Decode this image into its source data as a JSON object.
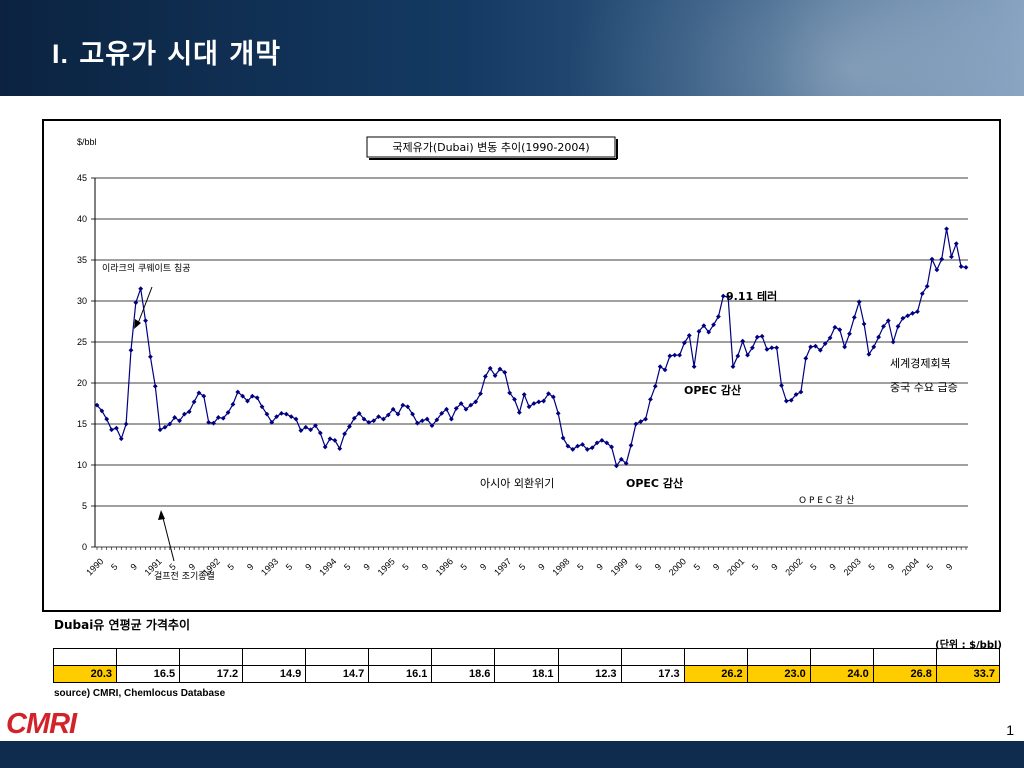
{
  "slide": {
    "title_num": "I.",
    "title_text": "고유가 시대 개막",
    "page_number": "1"
  },
  "chart_data": {
    "type": "line",
    "title": "국제유가(Dubai) 변동 추이(1990-2004)",
    "ylabel": "$/bbl",
    "ylim": [
      0,
      45
    ],
    "yticks": [
      0,
      5,
      10,
      15,
      20,
      25,
      30,
      35,
      40,
      45
    ],
    "grid": true,
    "line_color": "#000080",
    "x_tick_labels": [
      "1990",
      "5",
      "9",
      "1991",
      "5",
      "9",
      "1992",
      "5",
      "9",
      "1993",
      "5",
      "9",
      "1994",
      "5",
      "9",
      "1995",
      "5",
      "9",
      "1996",
      "5",
      "9",
      "1997",
      "5",
      "9",
      "1998",
      "5",
      "9",
      "1999",
      "5",
      "9",
      "2000",
      "5",
      "9",
      "2001",
      "5",
      "9",
      "2002",
      "5",
      "9",
      "2003",
      "5",
      "9",
      "2004",
      "5",
      "9"
    ],
    "series": [
      {
        "values": [
          17.3,
          16.6,
          15.6,
          14.3,
          14.5,
          13.2,
          15.0,
          24.0,
          29.8,
          31.5,
          27.6,
          23.2,
          19.6,
          14.3,
          14.6,
          15.0,
          15.8,
          15.4,
          16.2,
          16.5,
          17.7,
          18.8,
          18.4,
          15.2,
          15.1,
          15.8,
          15.7,
          16.4,
          17.4,
          18.9,
          18.4,
          17.8,
          18.4,
          18.2,
          17.1,
          16.2,
          15.2,
          15.9,
          16.3,
          16.2,
          15.9,
          15.6,
          14.2,
          14.6,
          14.3,
          14.8,
          13.9,
          12.2,
          13.2,
          13.0,
          12.0,
          13.8,
          14.7,
          15.7,
          16.3,
          15.6,
          15.2,
          15.4,
          15.9,
          15.6,
          16.1,
          16.8,
          16.2,
          17.3,
          17.1,
          16.2,
          15.1,
          15.4,
          15.6,
          14.8,
          15.5,
          16.3,
          16.8,
          15.6,
          16.9,
          17.5,
          16.8,
          17.3,
          17.7,
          18.7,
          20.8,
          21.8,
          20.9,
          21.7,
          21.3,
          18.8,
          18.0,
          16.4,
          18.6,
          17.1,
          17.5,
          17.7,
          17.8,
          18.7,
          18.3,
          16.3,
          13.3,
          12.3,
          11.9,
          12.3,
          12.5,
          11.9,
          12.1,
          12.7,
          13.0,
          12.7,
          12.2,
          9.9,
          10.7,
          10.2,
          12.4,
          15.0,
          15.3,
          15.6,
          18.0,
          19.6,
          22.0,
          21.6,
          23.3,
          23.4,
          23.4,
          24.9,
          25.8,
          22.0,
          26.3,
          27.0,
          26.2,
          27.1,
          28.1,
          30.6,
          30.5,
          22.0,
          23.3,
          25.1,
          23.4,
          24.3,
          25.6,
          25.7,
          24.1,
          24.3,
          24.3,
          19.7,
          17.8,
          17.9,
          18.6,
          18.9,
          23.0,
          24.4,
          24.5,
          24.0,
          24.8,
          25.5,
          26.8,
          26.5,
          24.4,
          26.0,
          28.0,
          29.9,
          27.2,
          23.5,
          24.4,
          25.6,
          26.9,
          27.6,
          25.0,
          26.9,
          27.9,
          28.2,
          28.5,
          28.7,
          30.9,
          31.8,
          35.1,
          33.8,
          35.1,
          38.8,
          35.4,
          37.0,
          34.2,
          34.1
        ]
      }
    ],
    "annotations": [
      {
        "text": "이라크의 쿠웨이트 침공",
        "x_index": 9,
        "y": 31.5
      },
      {
        "text": "걸프전 조기종결",
        "x_index": 14,
        "y": 4.0
      },
      {
        "text": "아시아 외환위기",
        "x_index": 94,
        "y": 7.5
      },
      {
        "text": "OPEC 감산",
        "x_index": 115,
        "y": 7.5
      },
      {
        "text": "OPEC 감산",
        "x_index": 144,
        "y": 19.0
      },
      {
        "text": "9.11 테러",
        "x_index": 141,
        "y": 30.3
      },
      {
        "text": "O P E C  감 산",
        "x_index": 163,
        "y": 5.5
      },
      {
        "text": "세계경제회복",
        "x_index": 183,
        "y": 22.2
      },
      {
        "text": "중국 수요 급증",
        "x_index": 183,
        "y": 19.2
      }
    ]
  },
  "table": {
    "caption": "Dubai유 연평균 가격추이",
    "unit": "(단위 : $/bbl)",
    "values": [
      "20.3",
      "16.5",
      "17.2",
      "14.9",
      "14.7",
      "16.1",
      "18.6",
      "18.1",
      "12.3",
      "17.3",
      "26.2",
      "23.0",
      "24.0",
      "26.8",
      "33.7"
    ],
    "highlight_color": "#ffcc00",
    "highlight_indices": [
      0,
      10,
      11,
      12,
      13,
      14
    ],
    "source": "source) CMRI, Chemlocus Database"
  },
  "logo": {
    "text": "CMRI",
    "color": "#d2232a"
  }
}
